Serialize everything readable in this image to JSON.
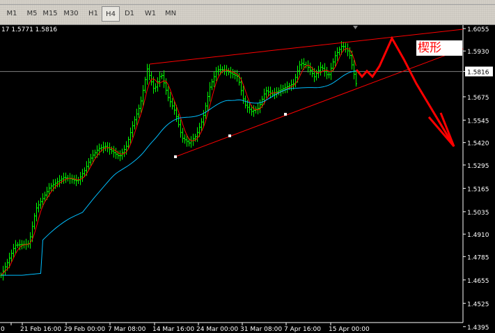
{
  "toolbar": {
    "timeframes": [
      "M1",
      "M5",
      "M15",
      "M30",
      "H1",
      "H4",
      "D1",
      "W1",
      "MN"
    ],
    "active": "H4"
  },
  "info_text": "17 1.5771 1.5816",
  "chart_data": {
    "type": "bar",
    "colors": {
      "bars": "#00ff00",
      "fast_ma": "#ff0000",
      "slow_ma": "#00bfff",
      "trendline": "#ff0000",
      "current_price_line": "#808080"
    },
    "price_ticks": [
      "1.6055",
      "1.5930",
      "1.5816",
      "1.5675",
      "1.5545",
      "1.5420",
      "1.5295",
      "1.5165",
      "1.5035",
      "1.4910",
      "1.4785",
      "1.4655",
      "1.4525",
      "1.4395"
    ],
    "ylim": [
      1.4395,
      1.6055
    ],
    "current_price": "1.5816",
    "time_ticks": [
      "0",
      "21 Feb 16:00",
      "29 Feb 00:00",
      "7 Mar 08:00",
      "14 Mar 16:00",
      "24 Mar 00:00",
      "31 Mar 08:00",
      "7 Apr 16:00",
      "15 Apr 00:00"
    ],
    "closes": [
      1.4681,
      1.4759,
      1.4848,
      1.4852,
      1.4856,
      1.505,
      1.5108,
      1.5173,
      1.5199,
      1.5225,
      1.5218,
      1.5205,
      1.5264,
      1.5341,
      1.5386,
      1.5399,
      1.537,
      1.5341,
      1.5399,
      1.5526,
      1.5632,
      1.583,
      1.571,
      1.5807,
      1.5671,
      1.5593,
      1.5447,
      1.5418,
      1.5457,
      1.5554,
      1.5729,
      1.5826,
      1.5826,
      1.5807,
      1.5787,
      1.5632,
      1.5593,
      1.5613,
      1.571,
      1.569,
      1.571,
      1.5729,
      1.5748,
      1.5865,
      1.5845,
      1.5787,
      1.5845,
      1.5787,
      1.5904,
      1.5962,
      1.5923,
      1.5748
    ],
    "annotation": "楔形"
  }
}
